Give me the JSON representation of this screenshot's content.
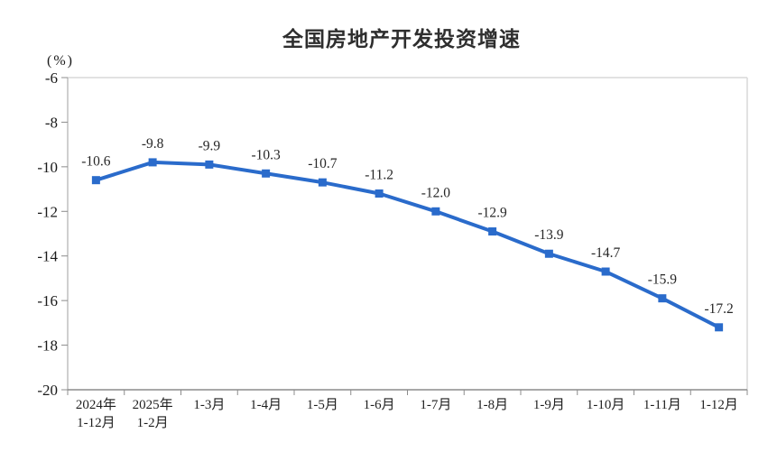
{
  "chart_data": {
    "type": "line",
    "title": "全国房地产开发投资增速",
    "unit_label": "(%)",
    "xlabel": "",
    "ylabel": "(%)",
    "categories": [
      [
        "2024年",
        "1-12月"
      ],
      [
        "2025年",
        "1-2月"
      ],
      [
        "1-3月"
      ],
      [
        "1-4月"
      ],
      [
        "1-5月"
      ],
      [
        "1-6月"
      ],
      [
        "1-7月"
      ],
      [
        "1-8月"
      ],
      [
        "1-9月"
      ],
      [
        "1-10月"
      ],
      [
        "1-11月"
      ],
      [
        "1-12月"
      ]
    ],
    "series": [
      {
        "name": "全国房地产开发投资增速",
        "values": [
          -10.6,
          -9.8,
          -9.9,
          -10.3,
          -10.7,
          -11.2,
          -12.0,
          -12.9,
          -13.9,
          -14.7,
          -15.9,
          -17.2
        ]
      }
    ],
    "data_label_decimals": 1,
    "ylim": [
      -20,
      -6
    ],
    "ytick_interval": 2,
    "ytick_labels": [
      "-6",
      "-8",
      "-10",
      "-12",
      "-14",
      "-16",
      "-18",
      "-20"
    ],
    "grid": false,
    "legend_position": "none",
    "marker": "square",
    "colors": {
      "line": "#2a6bcb",
      "marker": "#2a6bcb",
      "data_label": "#262626",
      "tick_label": "#1a1a1a",
      "bottom_axis": "#8c8c8c",
      "left_axis": "#bfbfbf",
      "plot_border": "#d9d9d9",
      "title": "#2e2e2e"
    }
  }
}
